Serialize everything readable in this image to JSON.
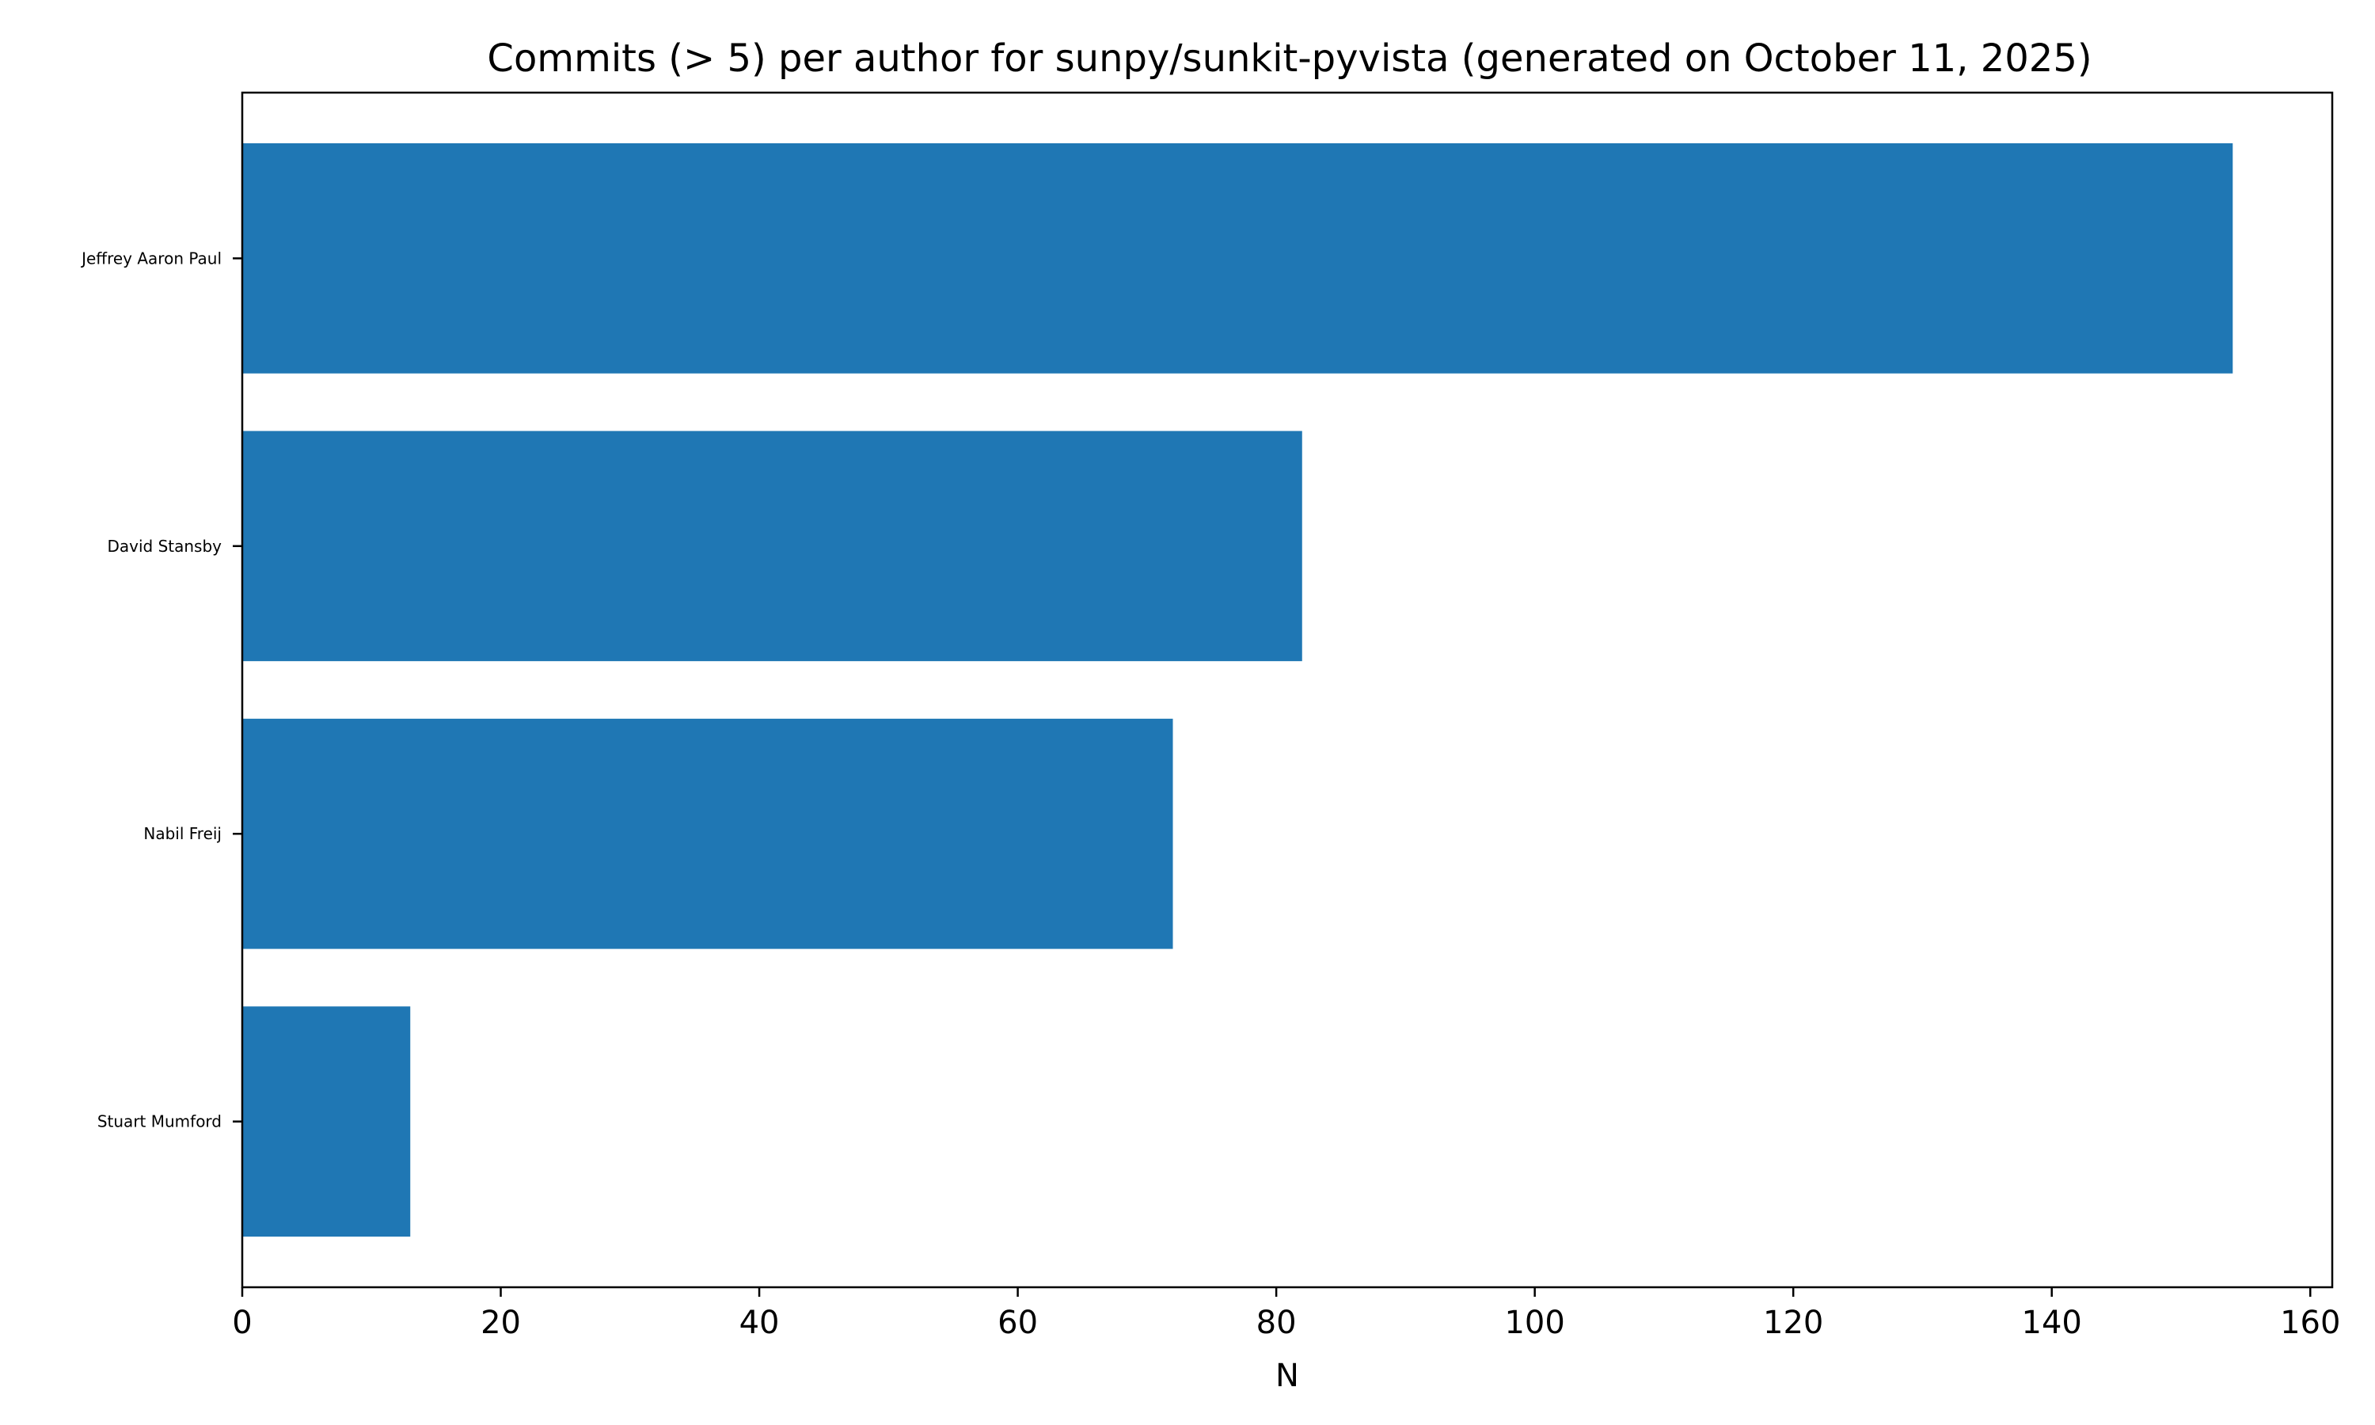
{
  "chart_data": {
    "type": "bar",
    "orientation": "horizontal",
    "title": "Commits (> 5) per author for sunpy/sunkit-pyvista (generated on October 11, 2025)",
    "xlabel": "N",
    "ylabel": "",
    "categories": [
      "Jeffrey Aaron Paul",
      "David Stansby",
      "Nabil Freij",
      "Stuart Mumford"
    ],
    "values": [
      154,
      82,
      72,
      13
    ],
    "xlim": [
      0,
      161.7
    ],
    "xticks": [
      0,
      20,
      40,
      60,
      80,
      100,
      120,
      140,
      160
    ],
    "grid": false,
    "legend": "none",
    "bar_color": "#1f77b4"
  }
}
